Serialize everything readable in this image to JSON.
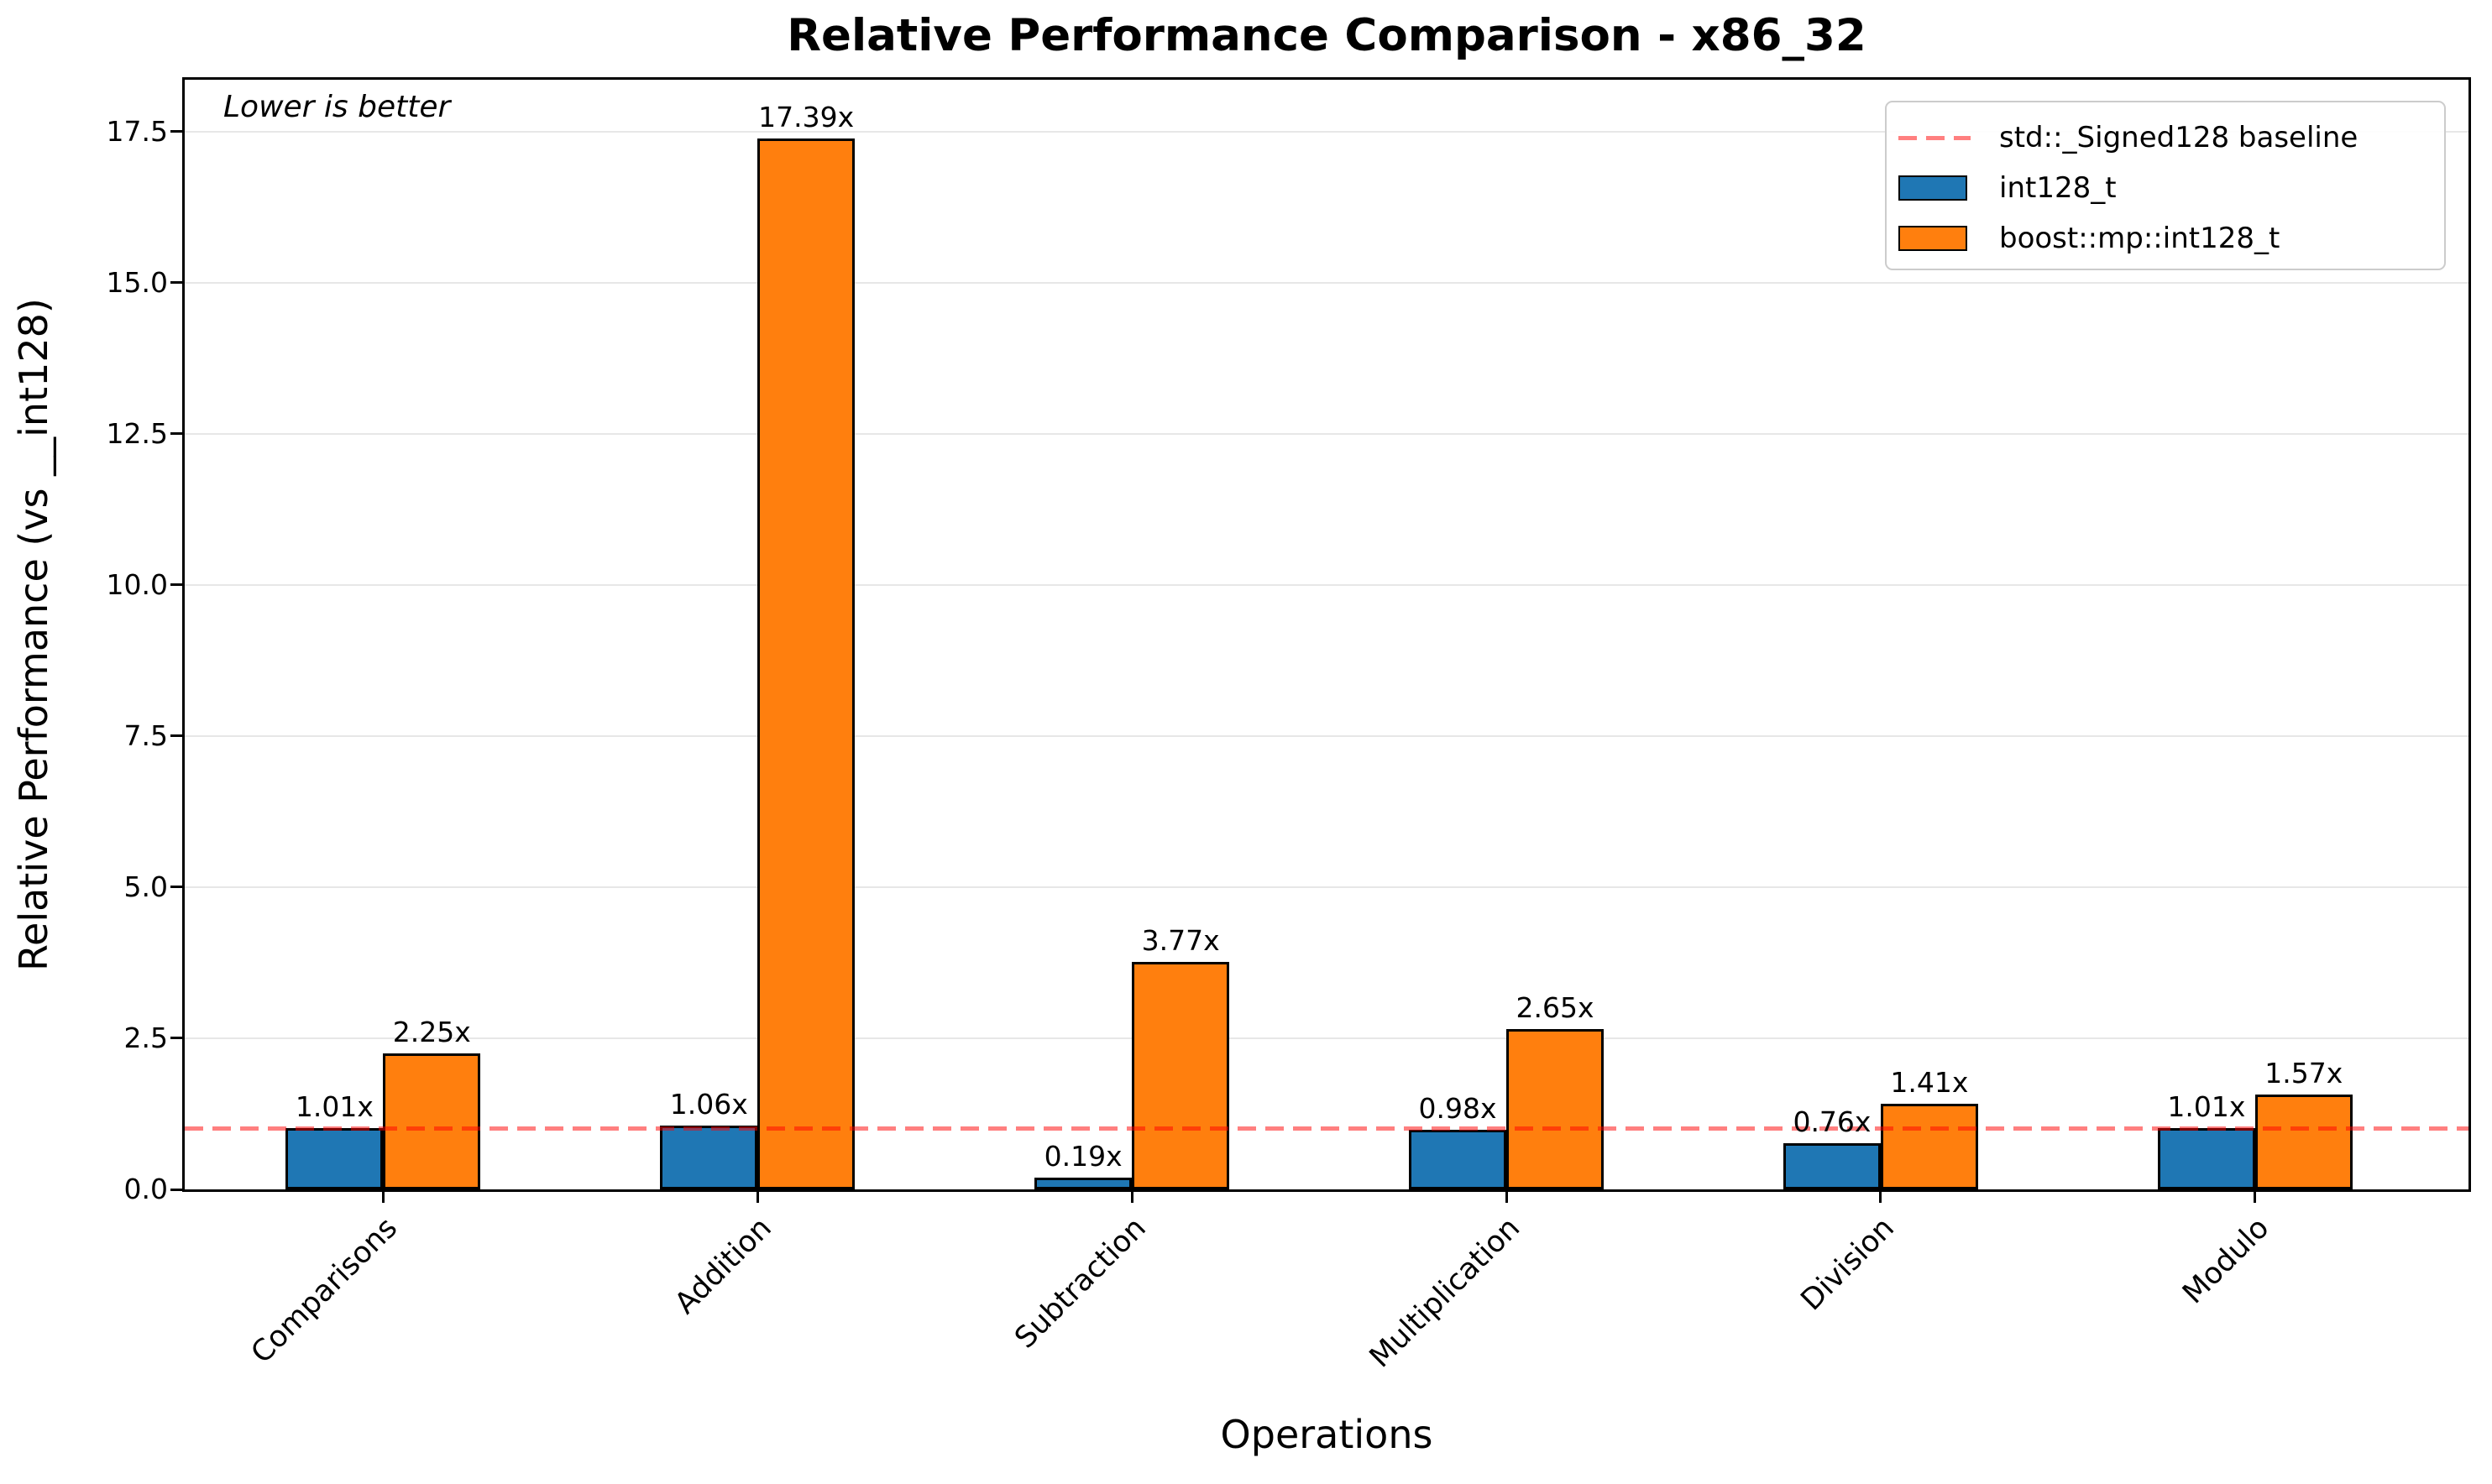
{
  "annotation": "Lower is better",
  "chart_data": {
    "type": "bar",
    "title": "Relative Performance Comparison - x86_32",
    "xlabel": "Operations",
    "ylabel": "Relative Performance (vs __int128)",
    "categories": [
      "Comparisons",
      "Addition",
      "Subtraction",
      "Multiplication",
      "Division",
      "Modulo"
    ],
    "series": [
      {
        "name": "int128_t",
        "color": "#1f77b4",
        "values": [
          1.01,
          1.06,
          0.19,
          0.98,
          0.76,
          1.01
        ],
        "labels": [
          "1.01x",
          "1.06x",
          "0.19x",
          "0.98x",
          "0.76x",
          "1.01x"
        ]
      },
      {
        "name": "boost::mp::int128_t",
        "color": "#ff7f0e",
        "values": [
          2.25,
          17.39,
          3.77,
          2.65,
          1.41,
          1.57
        ],
        "labels": [
          "2.25x",
          "17.39x",
          "3.77x",
          "2.65x",
          "1.41x",
          "1.57x"
        ]
      }
    ],
    "baseline": {
      "value": 1.0,
      "label": "std::_Signed128 baseline",
      "color": "rgba(255,0,0,0.5)",
      "style": "dashed"
    },
    "ylim": [
      0,
      18.36
    ],
    "xlim": [
      -0.53,
      5.57
    ],
    "bar_width": 0.26,
    "yticks": [
      0.0,
      2.5,
      5.0,
      7.5,
      10.0,
      12.5,
      15.0,
      17.5
    ],
    "ytick_labels": [
      "0.0",
      "2.5",
      "5.0",
      "7.5",
      "10.0",
      "12.5",
      "15.0",
      "17.5"
    ],
    "grid": "y",
    "legend_position": "upper right"
  }
}
